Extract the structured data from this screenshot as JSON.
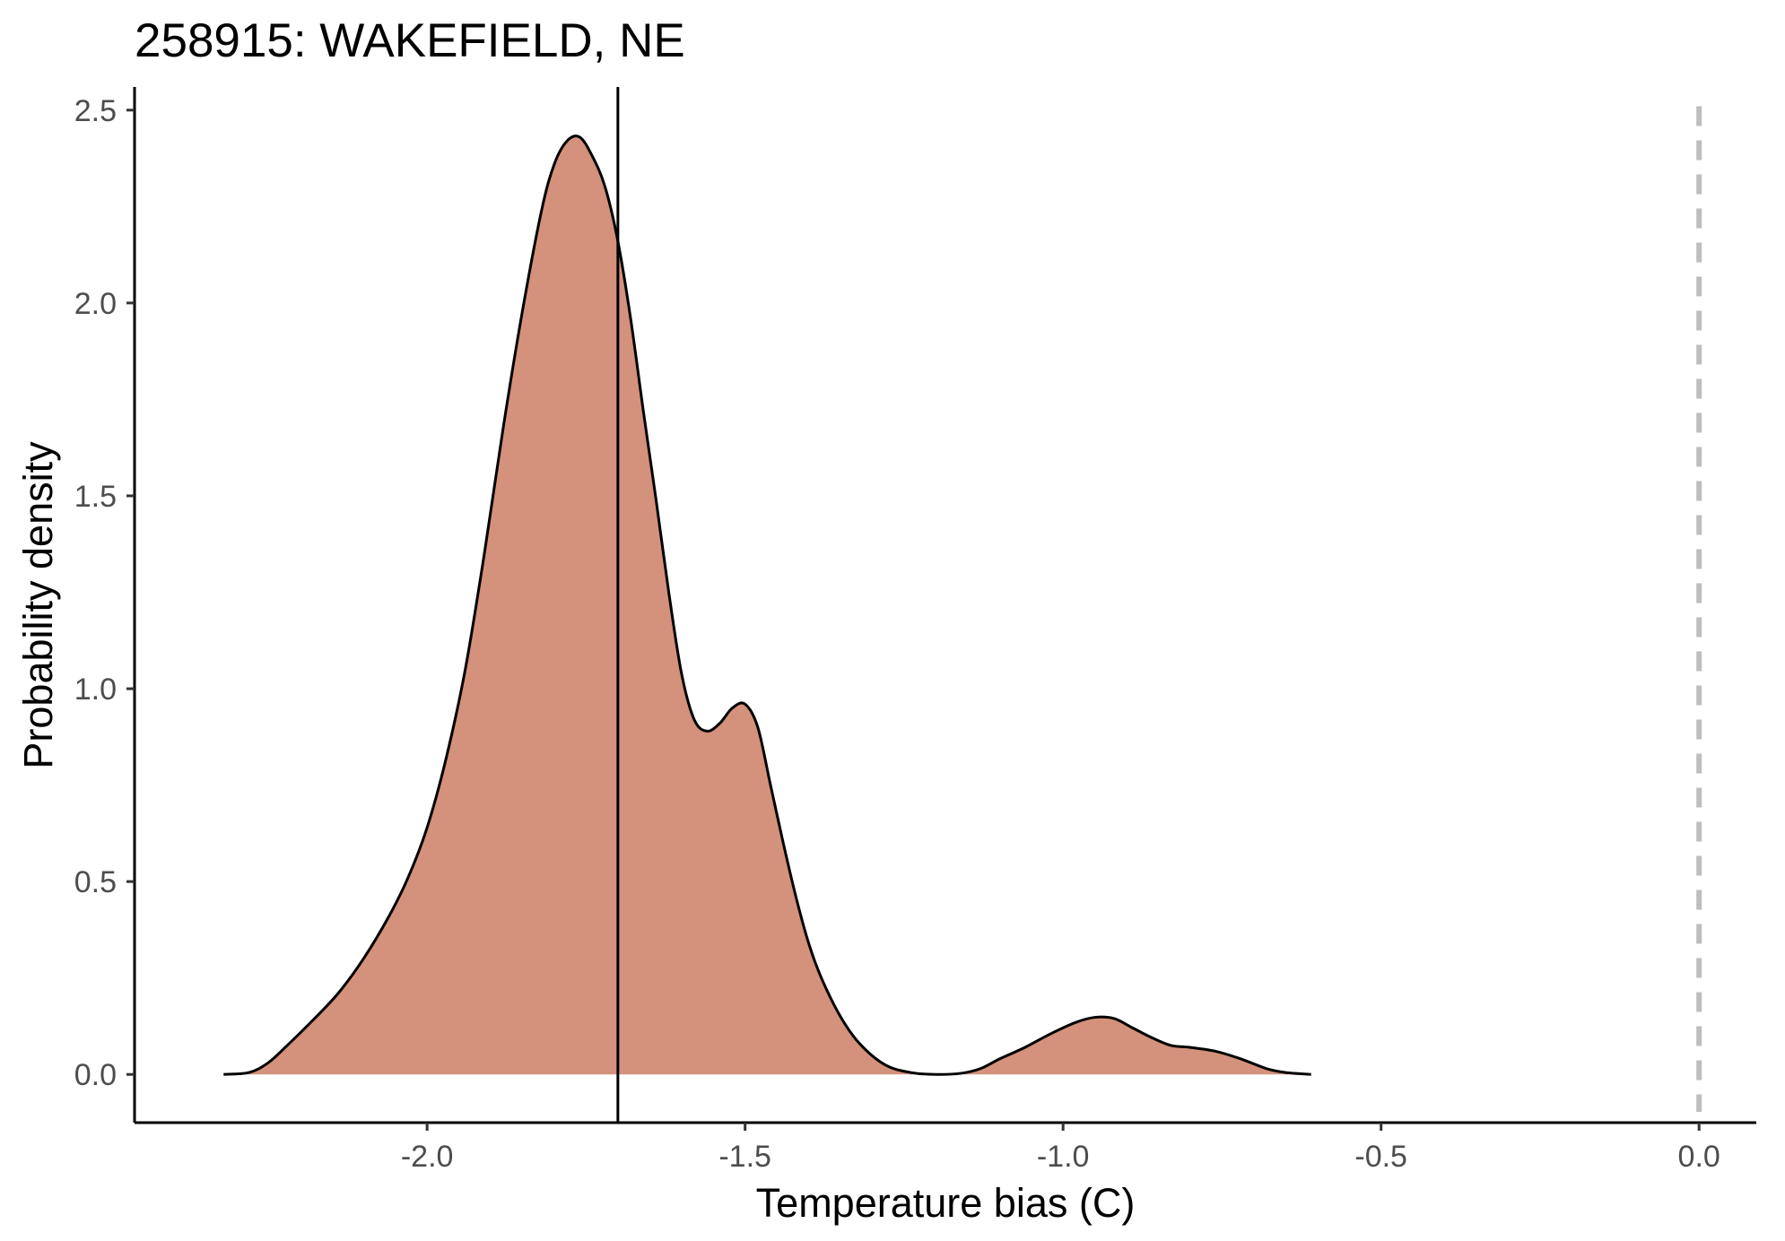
{
  "chart_data": {
    "type": "area",
    "title": "258915: WAKEFIELD, NE",
    "xlabel": "Temperature bias (C)",
    "ylabel": "Probability density",
    "xlim": [
      -2.46,
      0.09
    ],
    "ylim": [
      -0.125,
      2.56
    ],
    "x_ticks": [
      -2.0,
      -1.5,
      -1.0,
      -0.5,
      0.0
    ],
    "x_tick_labels": [
      "-2.0",
      "-1.5",
      "-1.0",
      "-0.5",
      "0.0"
    ],
    "y_ticks": [
      0.0,
      0.5,
      1.0,
      1.5,
      2.0,
      2.5
    ],
    "y_tick_labels": [
      "0.0",
      "0.5",
      "1.0",
      "1.5",
      "2.0",
      "2.5"
    ],
    "grid": false,
    "legend": "none",
    "fill_color": "#d4917b",
    "line_color": "#000000",
    "reference_line_color": "#bebebe",
    "series": [
      {
        "x": [
          -2.32,
          -2.28,
          -2.25,
          -2.22,
          -2.18,
          -2.14,
          -2.1,
          -2.06,
          -2.03,
          -2.0,
          -1.97,
          -1.94,
          -1.91,
          -1.88,
          -1.85,
          -1.82,
          -1.8,
          -1.78,
          -1.76,
          -1.74,
          -1.72,
          -1.7,
          -1.68,
          -1.66,
          -1.64,
          -1.62,
          -1.6,
          -1.58,
          -1.56,
          -1.54,
          -1.52,
          -1.5,
          -1.48,
          -1.46,
          -1.44,
          -1.42,
          -1.4,
          -1.38,
          -1.35,
          -1.32,
          -1.28,
          -1.24,
          -1.2,
          -1.16,
          -1.13,
          -1.1,
          -1.06,
          -1.02,
          -0.98,
          -0.95,
          -0.92,
          -0.89,
          -0.86,
          -0.83,
          -0.8,
          -0.76,
          -0.72,
          -0.68,
          -0.65,
          -0.61
        ],
        "y": [
          0.0,
          0.005,
          0.03,
          0.075,
          0.14,
          0.21,
          0.3,
          0.41,
          0.51,
          0.64,
          0.82,
          1.05,
          1.35,
          1.68,
          1.98,
          2.24,
          2.36,
          2.42,
          2.43,
          2.38,
          2.3,
          2.16,
          1.96,
          1.72,
          1.49,
          1.25,
          1.04,
          0.92,
          0.89,
          0.91,
          0.95,
          0.96,
          0.9,
          0.75,
          0.6,
          0.46,
          0.34,
          0.25,
          0.15,
          0.08,
          0.025,
          0.005,
          0.0,
          0.003,
          0.015,
          0.04,
          0.07,
          0.105,
          0.135,
          0.148,
          0.145,
          0.12,
          0.095,
          0.075,
          0.07,
          0.06,
          0.04,
          0.015,
          0.005,
          0.0
        ]
      }
    ],
    "vertical_lines": [
      {
        "x": -1.7,
        "style": "solid"
      },
      {
        "x": 0.0,
        "style": "dashed"
      }
    ]
  }
}
